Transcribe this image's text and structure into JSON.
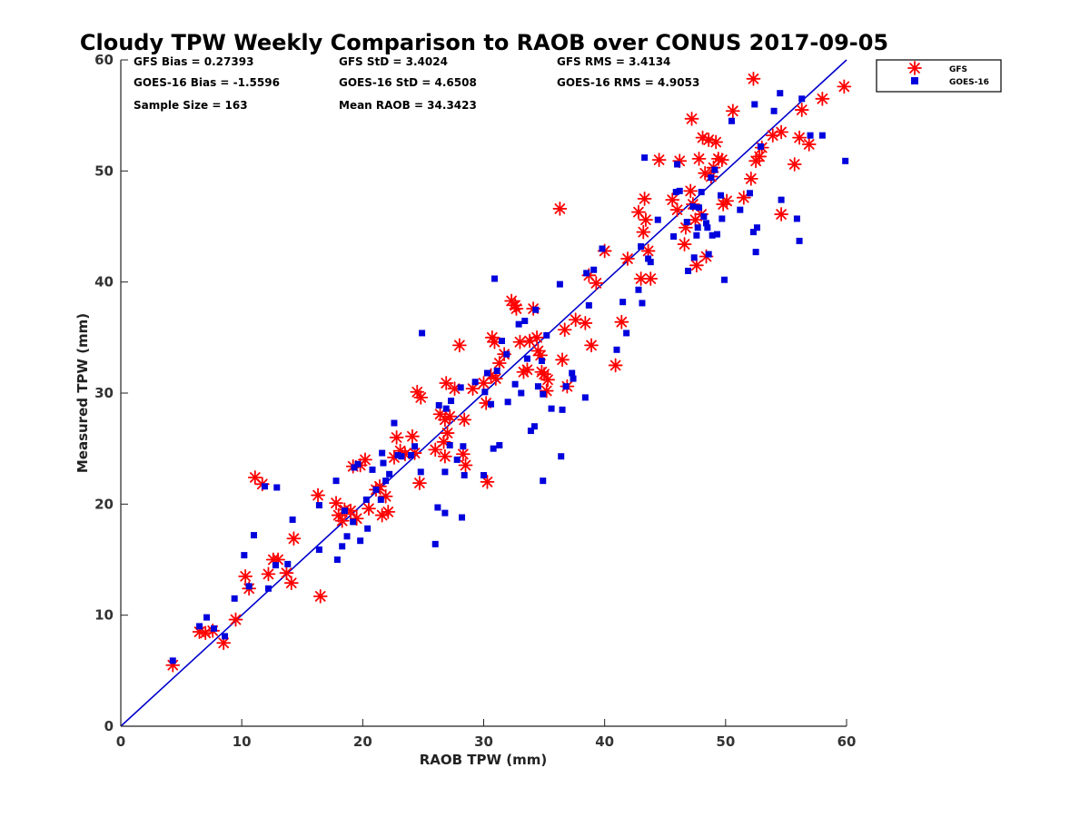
{
  "chart_data": {
    "type": "scatter",
    "title": "Cloudy TPW Weekly Comparison to RAOB over CONUS 2017-09-05",
    "xlabel": "RAOB TPW (mm)",
    "ylabel": "Measured TPW (mm)",
    "xlim": [
      0,
      60
    ],
    "ylim": [
      0,
      60
    ],
    "xticks": [
      "0",
      "10",
      "20",
      "30",
      "40",
      "50",
      "60"
    ],
    "yticks": [
      "0",
      "10",
      "20",
      "30",
      "40",
      "50",
      "60"
    ],
    "grid": false,
    "legend_position": "top-right outside",
    "reference_line": {
      "name": "1:1 line",
      "from": [
        0,
        0
      ],
      "to": [
        60,
        60
      ],
      "color": "#0000cc"
    },
    "stats": [
      [
        "GFS Bias = 0.27393",
        "GFS StD = 3.4024",
        "GFS RMS = 3.4134"
      ],
      [
        "GOES-16 Bias = -1.5596",
        "GOES-16 StD = 4.6508",
        "GOES-16 RMS = 4.9053"
      ],
      [
        "Sample Size = 163",
        "Mean RAOB = 34.3423",
        ""
      ]
    ],
    "series": [
      {
        "name": "GFS",
        "marker": "asterisk",
        "color": "#ff0000",
        "points": [
          [
            4.3,
            5.5
          ],
          [
            6.5,
            8.5
          ],
          [
            7.0,
            8.4
          ],
          [
            7.6,
            8.6
          ],
          [
            8.5,
            7.5
          ],
          [
            9.5,
            9.6
          ],
          [
            10.3,
            13.5
          ],
          [
            10.6,
            12.4
          ],
          [
            11.1,
            22.4
          ],
          [
            11.7,
            21.8
          ],
          [
            12.2,
            13.7
          ],
          [
            12.6,
            15.0
          ],
          [
            13.0,
            15.0
          ],
          [
            13.7,
            13.8
          ],
          [
            14.1,
            12.9
          ],
          [
            14.3,
            16.9
          ],
          [
            16.3,
            20.8
          ],
          [
            16.5,
            11.7
          ],
          [
            17.8,
            20.1
          ],
          [
            18.0,
            19.0
          ],
          [
            18.3,
            18.5
          ],
          [
            18.5,
            19.5
          ],
          [
            19.0,
            19.4
          ],
          [
            19.5,
            18.7
          ],
          [
            19.2,
            23.4
          ],
          [
            19.8,
            23.5
          ],
          [
            20.2,
            24.0
          ],
          [
            20.5,
            19.6
          ],
          [
            21.1,
            21.3
          ],
          [
            21.4,
            21.6
          ],
          [
            21.6,
            19.0
          ],
          [
            21.9,
            20.7
          ],
          [
            22.1,
            19.3
          ],
          [
            22.6,
            24.2
          ],
          [
            22.8,
            26.0
          ],
          [
            23.1,
            24.8
          ],
          [
            23.5,
            24.5
          ],
          [
            24.1,
            26.1
          ],
          [
            24.3,
            24.6
          ],
          [
            24.5,
            30.1
          ],
          [
            24.8,
            29.6
          ],
          [
            24.7,
            21.9
          ],
          [
            26.0,
            24.9
          ],
          [
            26.4,
            28.1
          ],
          [
            26.7,
            25.6
          ],
          [
            26.8,
            27.6
          ],
          [
            27.0,
            26.4
          ],
          [
            26.9,
            30.9
          ],
          [
            27.2,
            27.9
          ],
          [
            26.8,
            24.3
          ],
          [
            27.6,
            30.4
          ],
          [
            28.0,
            34.3
          ],
          [
            28.4,
            27.6
          ],
          [
            28.3,
            24.5
          ],
          [
            28.5,
            23.5
          ],
          [
            29.1,
            30.4
          ],
          [
            30.0,
            30.9
          ],
          [
            30.2,
            29.1
          ],
          [
            30.3,
            22.0
          ],
          [
            30.6,
            31.6
          ],
          [
            30.7,
            35.0
          ],
          [
            30.9,
            34.6
          ],
          [
            31.0,
            31.3
          ],
          [
            31.3,
            32.7
          ],
          [
            31.7,
            33.5
          ],
          [
            32.3,
            38.3
          ],
          [
            32.6,
            37.9
          ],
          [
            32.7,
            37.6
          ],
          [
            33.0,
            34.6
          ],
          [
            33.3,
            31.9
          ],
          [
            33.6,
            32.1
          ],
          [
            33.8,
            34.7
          ],
          [
            34.1,
            37.6
          ],
          [
            34.4,
            35.0
          ],
          [
            34.5,
            33.8
          ],
          [
            34.7,
            33.4
          ],
          [
            34.8,
            31.9
          ],
          [
            35.0,
            31.7
          ],
          [
            35.2,
            30.2
          ],
          [
            35.3,
            31.2
          ],
          [
            36.3,
            46.6
          ],
          [
            36.5,
            33.0
          ],
          [
            36.7,
            35.7
          ],
          [
            36.9,
            30.6
          ],
          [
            37.6,
            36.6
          ],
          [
            38.4,
            36.3
          ],
          [
            38.7,
            40.6
          ],
          [
            38.9,
            34.3
          ],
          [
            39.3,
            39.9
          ],
          [
            40.0,
            42.8
          ],
          [
            40.9,
            32.5
          ],
          [
            41.4,
            36.4
          ],
          [
            41.9,
            42.1
          ],
          [
            42.8,
            46.3
          ],
          [
            43.0,
            40.3
          ],
          [
            43.2,
            44.5
          ],
          [
            43.3,
            47.5
          ],
          [
            43.4,
            45.6
          ],
          [
            43.6,
            42.8
          ],
          [
            43.8,
            40.3
          ],
          [
            44.5,
            51.0
          ],
          [
            45.6,
            47.4
          ],
          [
            46.0,
            46.5
          ],
          [
            46.2,
            50.9
          ],
          [
            46.6,
            43.4
          ],
          [
            46.7,
            44.9
          ],
          [
            47.2,
            54.7
          ],
          [
            47.1,
            48.2
          ],
          [
            47.3,
            47.0
          ],
          [
            47.5,
            45.6
          ],
          [
            47.6,
            41.5
          ],
          [
            47.8,
            51.1
          ],
          [
            48.0,
            46.1
          ],
          [
            48.1,
            53.0
          ],
          [
            48.3,
            49.8
          ],
          [
            48.4,
            42.3
          ],
          [
            48.8,
            49.5
          ],
          [
            48.6,
            52.8
          ],
          [
            49.0,
            50.3
          ],
          [
            49.2,
            52.6
          ],
          [
            49.4,
            51.1
          ],
          [
            49.7,
            51.0
          ],
          [
            49.8,
            47.0
          ],
          [
            50.1,
            47.3
          ],
          [
            50.6,
            55.4
          ],
          [
            51.5,
            47.6
          ],
          [
            52.1,
            49.3
          ],
          [
            52.3,
            58.3
          ],
          [
            52.5,
            50.9
          ],
          [
            52.8,
            51.3
          ],
          [
            53.0,
            52.1
          ],
          [
            53.9,
            53.2
          ],
          [
            54.6,
            53.5
          ],
          [
            54.6,
            46.1
          ],
          [
            55.7,
            50.6
          ],
          [
            56.1,
            53.0
          ],
          [
            56.3,
            55.5
          ],
          [
            56.9,
            52.4
          ],
          [
            58.0,
            56.5
          ],
          [
            59.8,
            57.6
          ]
        ]
      },
      {
        "name": "GOES-16",
        "marker": "square",
        "color": "#0000dd",
        "points": [
          [
            4.3,
            5.9
          ],
          [
            6.5,
            9.0
          ],
          [
            7.1,
            9.8
          ],
          [
            7.7,
            8.8
          ],
          [
            8.6,
            8.1
          ],
          [
            9.4,
            11.5
          ],
          [
            10.2,
            15.4
          ],
          [
            10.6,
            12.6
          ],
          [
            11.0,
            17.2
          ],
          [
            11.9,
            21.6
          ],
          [
            12.2,
            12.4
          ],
          [
            12.8,
            14.5
          ],
          [
            12.9,
            21.5
          ],
          [
            13.8,
            14.6
          ],
          [
            14.2,
            18.6
          ],
          [
            16.4,
            15.9
          ],
          [
            16.4,
            19.9
          ],
          [
            17.8,
            22.1
          ],
          [
            17.9,
            15.0
          ],
          [
            18.3,
            16.2
          ],
          [
            18.5,
            19.4
          ],
          [
            18.7,
            17.1
          ],
          [
            19.2,
            18.4
          ],
          [
            19.3,
            23.3
          ],
          [
            19.6,
            23.6
          ],
          [
            19.8,
            16.7
          ],
          [
            20.3,
            20.4
          ],
          [
            20.4,
            17.8
          ],
          [
            20.8,
            23.1
          ],
          [
            21.1,
            21.3
          ],
          [
            21.5,
            20.4
          ],
          [
            21.6,
            24.6
          ],
          [
            21.7,
            23.7
          ],
          [
            21.9,
            22.1
          ],
          [
            22.2,
            22.7
          ],
          [
            22.6,
            27.3
          ],
          [
            22.9,
            24.4
          ],
          [
            23.2,
            24.3
          ],
          [
            24.0,
            24.4
          ],
          [
            24.3,
            25.2
          ],
          [
            24.8,
            22.9
          ],
          [
            24.9,
            35.4
          ],
          [
            26.0,
            16.4
          ],
          [
            26.2,
            19.7
          ],
          [
            26.3,
            28.9
          ],
          [
            26.8,
            22.9
          ],
          [
            26.8,
            19.2
          ],
          [
            26.9,
            28.6
          ],
          [
            27.2,
            25.3
          ],
          [
            27.3,
            29.3
          ],
          [
            27.8,
            24.0
          ],
          [
            28.1,
            30.5
          ],
          [
            28.3,
            25.2
          ],
          [
            28.4,
            22.6
          ],
          [
            28.2,
            18.8
          ],
          [
            29.3,
            31.0
          ],
          [
            30.0,
            22.6
          ],
          [
            30.1,
            30.1
          ],
          [
            30.3,
            31.8
          ],
          [
            30.6,
            29.0
          ],
          [
            30.8,
            25.0
          ],
          [
            30.9,
            40.3
          ],
          [
            31.1,
            32.0
          ],
          [
            31.3,
            25.3
          ],
          [
            31.5,
            34.7
          ],
          [
            31.9,
            33.5
          ],
          [
            32.0,
            29.2
          ],
          [
            32.6,
            30.8
          ],
          [
            32.9,
            36.2
          ],
          [
            33.1,
            30.0
          ],
          [
            33.4,
            36.5
          ],
          [
            33.6,
            33.1
          ],
          [
            33.9,
            26.6
          ],
          [
            34.2,
            27.0
          ],
          [
            34.3,
            37.5
          ],
          [
            34.5,
            30.6
          ],
          [
            34.8,
            32.9
          ],
          [
            34.9,
            22.1
          ],
          [
            34.9,
            29.9
          ],
          [
            35.2,
            35.2
          ],
          [
            35.6,
            28.6
          ],
          [
            36.3,
            39.8
          ],
          [
            36.4,
            24.3
          ],
          [
            36.5,
            28.5
          ],
          [
            36.8,
            30.6
          ],
          [
            37.3,
            31.8
          ],
          [
            37.4,
            31.3
          ],
          [
            38.4,
            29.6
          ],
          [
            38.5,
            40.8
          ],
          [
            38.7,
            37.9
          ],
          [
            39.1,
            41.1
          ],
          [
            39.8,
            43.0
          ],
          [
            41.0,
            33.9
          ],
          [
            41.5,
            38.2
          ],
          [
            41.8,
            35.4
          ],
          [
            42.8,
            39.3
          ],
          [
            43.0,
            43.2
          ],
          [
            43.3,
            51.2
          ],
          [
            43.1,
            38.1
          ],
          [
            43.6,
            42.1
          ],
          [
            43.8,
            41.8
          ],
          [
            44.4,
            45.6
          ],
          [
            45.7,
            44.1
          ],
          [
            45.9,
            48.1
          ],
          [
            46.2,
            48.2
          ],
          [
            46.0,
            50.6
          ],
          [
            46.8,
            45.4
          ],
          [
            46.9,
            41.0
          ],
          [
            47.3,
            46.8
          ],
          [
            47.4,
            42.2
          ],
          [
            47.6,
            44.2
          ],
          [
            47.7,
            44.9
          ],
          [
            47.8,
            46.7
          ],
          [
            48.0,
            48.1
          ],
          [
            48.2,
            45.9
          ],
          [
            48.4,
            45.3
          ],
          [
            48.5,
            44.9
          ],
          [
            48.6,
            42.5
          ],
          [
            48.8,
            49.4
          ],
          [
            48.9,
            44.2
          ],
          [
            49.1,
            50.1
          ],
          [
            49.3,
            44.3
          ],
          [
            49.6,
            47.8
          ],
          [
            49.7,
            45.7
          ],
          [
            49.9,
            40.2
          ],
          [
            50.5,
            54.5
          ],
          [
            51.2,
            46.5
          ],
          [
            52.0,
            48.0
          ],
          [
            52.3,
            44.5
          ],
          [
            52.4,
            56.0
          ],
          [
            52.5,
            42.7
          ],
          [
            52.6,
            44.9
          ],
          [
            52.9,
            52.2
          ],
          [
            54.0,
            55.4
          ],
          [
            54.5,
            57.0
          ],
          [
            54.6,
            47.4
          ],
          [
            55.9,
            45.7
          ],
          [
            56.1,
            43.7
          ],
          [
            56.3,
            56.5
          ],
          [
            57.0,
            53.2
          ],
          [
            58.0,
            53.2
          ],
          [
            59.9,
            50.9
          ]
        ]
      }
    ]
  }
}
